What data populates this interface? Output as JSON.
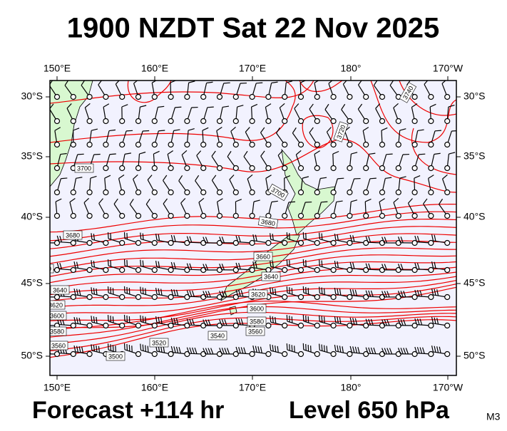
{
  "title": "1900 NZDT Sat 22 Nov 2025",
  "footer": {
    "forecast": "Forecast +114 hr",
    "level": "Level 650 hPa",
    "code": "M3"
  },
  "map": {
    "lon_labels": [
      "150°E",
      "160°E",
      "170°E",
      "180°",
      "170°W"
    ],
    "lat_labels": [
      "30°S",
      "35°S",
      "40°S",
      "45°S",
      "50°S"
    ],
    "contour_labels": [
      3740,
      3720,
      3700,
      3700,
      3680,
      3680,
      3660,
      3660,
      3640,
      3640,
      3620,
      3620,
      3600,
      3600,
      3580,
      3580,
      3560,
      3560,
      3540,
      3520,
      3500
    ]
  }
}
